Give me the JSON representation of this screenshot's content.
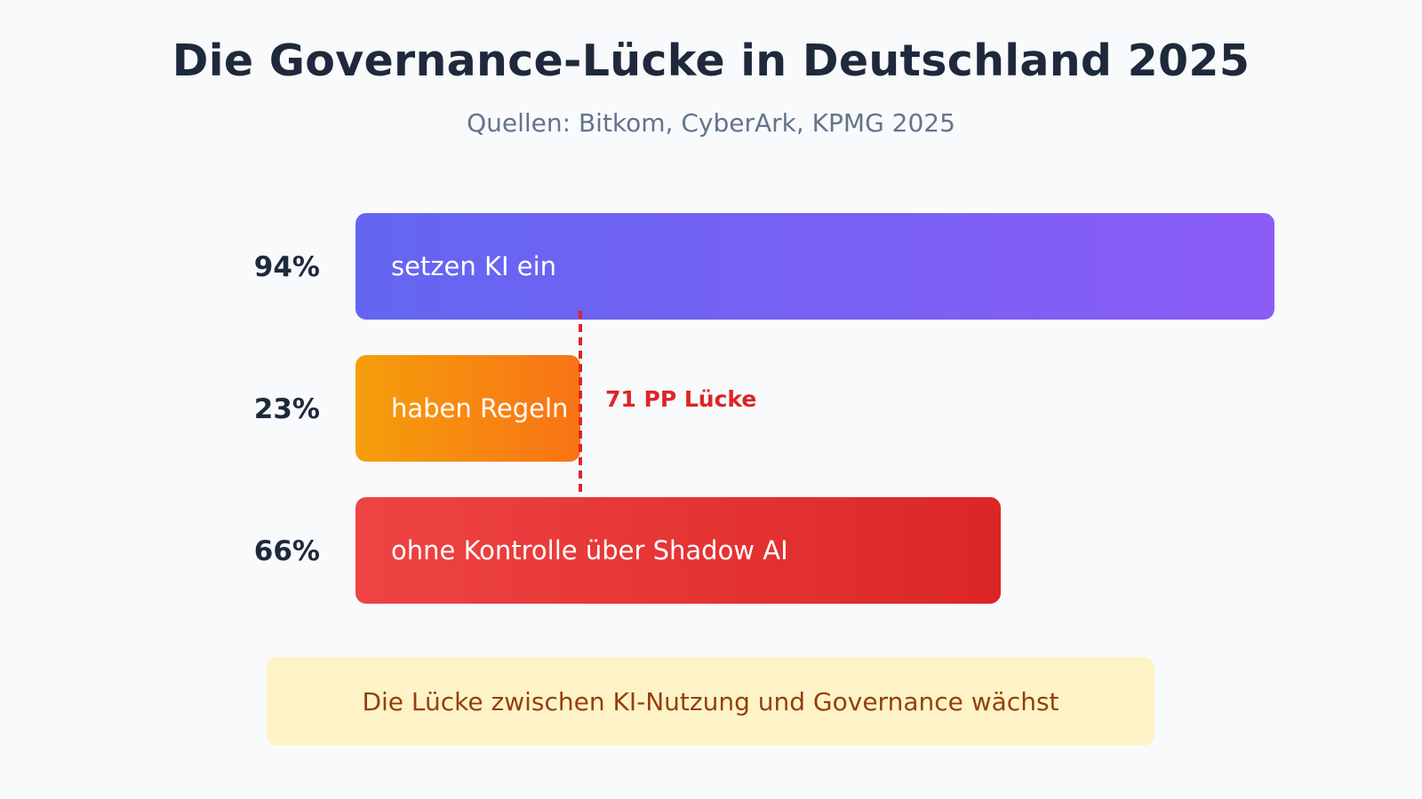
{
  "header": {
    "title": "Die Governance-Lücke in Deutschland 2025",
    "subtitle": "Quellen: Bitkom, CyberArk, KPMG 2025"
  },
  "chart_data": {
    "type": "bar",
    "orientation": "horizontal",
    "xlim": [
      0,
      94
    ],
    "grid": false,
    "bars": [
      {
        "value": 94,
        "display": "94%",
        "label": "setzen KI ein",
        "colors": [
          "#6366f1",
          "#8b5cf6"
        ]
      },
      {
        "value": 23,
        "display": "23%",
        "label": "haben Regeln",
        "colors": [
          "#f59e0b",
          "#f97316"
        ]
      },
      {
        "value": 66,
        "display": "66%",
        "label": "ohne Kontrolle über Shadow AI",
        "colors": [
          "#ef4444",
          "#dc2626"
        ]
      }
    ],
    "annotation": {
      "text": "71 PP Lücke",
      "at_value": 23,
      "color": "#dc2626"
    }
  },
  "footer_note": {
    "text": "Die Lücke zwischen KI-Nutzung und Governance wächst"
  }
}
